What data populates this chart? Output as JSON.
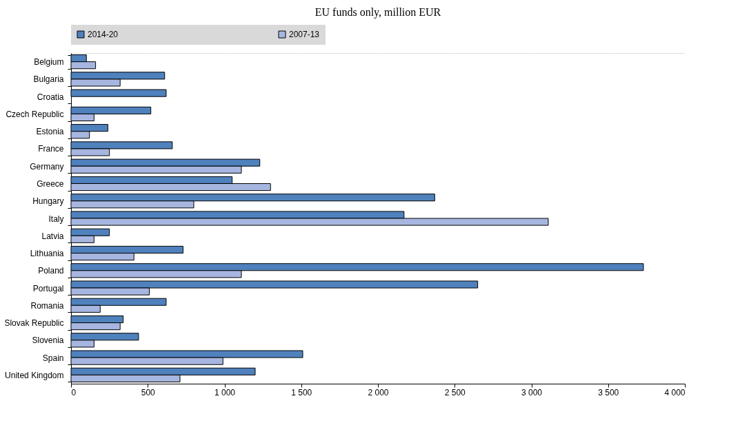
{
  "chart_data": {
    "type": "bar",
    "orientation": "horizontal",
    "title": "EU funds only, million EUR",
    "categories": [
      "Belgium",
      "Bulgaria",
      "Croatia",
      "Czech Republic",
      "Estonia",
      "France",
      "Germany",
      "Greece",
      "Hungary",
      "Italy",
      "Latvia",
      "Lithuania",
      "Poland",
      "Portugal",
      "Romania",
      "Slovak Republic",
      "Slovenia",
      "Spain",
      "United Kingdom"
    ],
    "series": [
      {
        "name": "2014-20",
        "color": "#4f81bd",
        "values": [
          100,
          610,
          620,
          520,
          240,
          660,
          1230,
          1050,
          2370,
          2170,
          250,
          730,
          3730,
          2650,
          620,
          340,
          440,
          1510,
          1200
        ]
      },
      {
        "name": "2007-13",
        "color": "#a6b6e0",
        "values": [
          160,
          320,
          null,
          150,
          120,
          250,
          1110,
          1300,
          800,
          3110,
          150,
          410,
          1110,
          510,
          190,
          320,
          150,
          990,
          710
        ]
      }
    ],
    "xlim": [
      0,
      4000
    ],
    "xticks": [
      0,
      500,
      {
        "value": 1000,
        "label": "1 000"
      },
      {
        "value": 1500,
        "label": "1 500"
      },
      {
        "value": 2000,
        "label": "2 000"
      },
      {
        "value": 2500,
        "label": "2 500"
      },
      {
        "value": 3000,
        "label": "3 000"
      },
      {
        "value": 3500,
        "label": "3 500"
      },
      {
        "value": 4000,
        "label": "4 000"
      }
    ],
    "grid": "x",
    "legend": "top"
  }
}
